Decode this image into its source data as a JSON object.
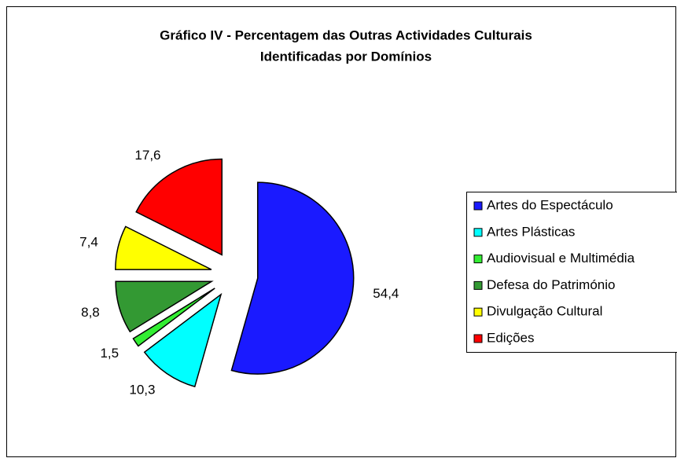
{
  "chart_data": {
    "type": "pie",
    "title": [
      "Gráfico IV - Percentagem das Outras Actividades Culturais",
      "Identificadas por Domínios"
    ],
    "categories": [
      "Artes do Espectáculo",
      "Artes Plásticas",
      "Audiovisual e Multimédia",
      "Defesa do Património",
      "Divulgação Cultural",
      "Edições"
    ],
    "values": [
      54.4,
      10.3,
      1.5,
      8.8,
      7.4,
      17.6
    ],
    "value_labels": [
      "54,4",
      "10,3",
      "1,5",
      "8,8",
      "7,4",
      "17,6"
    ],
    "colors": [
      "#1a1aff",
      "#00ffff",
      "#33ee33",
      "#339933",
      "#ffff00",
      "#ff0000"
    ],
    "legend": "right",
    "exploded": true
  }
}
